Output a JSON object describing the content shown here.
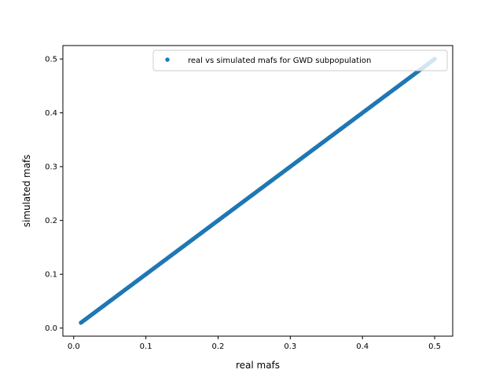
{
  "chart_data": {
    "type": "scatter",
    "title": "",
    "xlabel": "real mafs",
    "ylabel": "simulated mafs",
    "xlim": [
      -0.015,
      0.525
    ],
    "ylim": [
      -0.015,
      0.525
    ],
    "xticks": [
      0.0,
      0.1,
      0.2,
      0.3,
      0.4,
      0.5
    ],
    "yticks": [
      0.0,
      0.1,
      0.2,
      0.3,
      0.4,
      0.5
    ],
    "xtick_labels": [
      "0.0",
      "0.1",
      "0.2",
      "0.3",
      "0.4",
      "0.5"
    ],
    "ytick_labels": [
      "0.0",
      "0.1",
      "0.2",
      "0.3",
      "0.4",
      "0.5"
    ],
    "legend_position": "top-right",
    "grid": false,
    "series": [
      {
        "name": "real vs simulated mafs for GWD subpopulation",
        "color": "#1f77b4",
        "marker": "circle",
        "trend": "y ≈ x",
        "x": [
          0.01,
          0.02,
          0.03,
          0.04,
          0.05,
          0.06,
          0.07,
          0.08,
          0.09,
          0.1,
          0.11,
          0.12,
          0.13,
          0.14,
          0.15,
          0.16,
          0.17,
          0.18,
          0.19,
          0.2,
          0.21,
          0.22,
          0.23,
          0.24,
          0.25,
          0.26,
          0.27,
          0.28,
          0.29,
          0.3,
          0.31,
          0.32,
          0.33,
          0.34,
          0.35,
          0.36,
          0.37,
          0.38,
          0.39,
          0.4,
          0.41,
          0.42,
          0.43,
          0.44,
          0.45,
          0.46,
          0.47,
          0.48,
          0.49,
          0.5
        ],
        "y": [
          0.01,
          0.02,
          0.03,
          0.04,
          0.05,
          0.06,
          0.07,
          0.08,
          0.09,
          0.1,
          0.11,
          0.12,
          0.13,
          0.14,
          0.15,
          0.16,
          0.17,
          0.18,
          0.19,
          0.2,
          0.21,
          0.22,
          0.23,
          0.24,
          0.25,
          0.26,
          0.27,
          0.28,
          0.29,
          0.3,
          0.31,
          0.32,
          0.33,
          0.34,
          0.35,
          0.36,
          0.37,
          0.38,
          0.39,
          0.4,
          0.41,
          0.42,
          0.43,
          0.44,
          0.45,
          0.46,
          0.47,
          0.48,
          0.49,
          0.5
        ]
      }
    ]
  }
}
